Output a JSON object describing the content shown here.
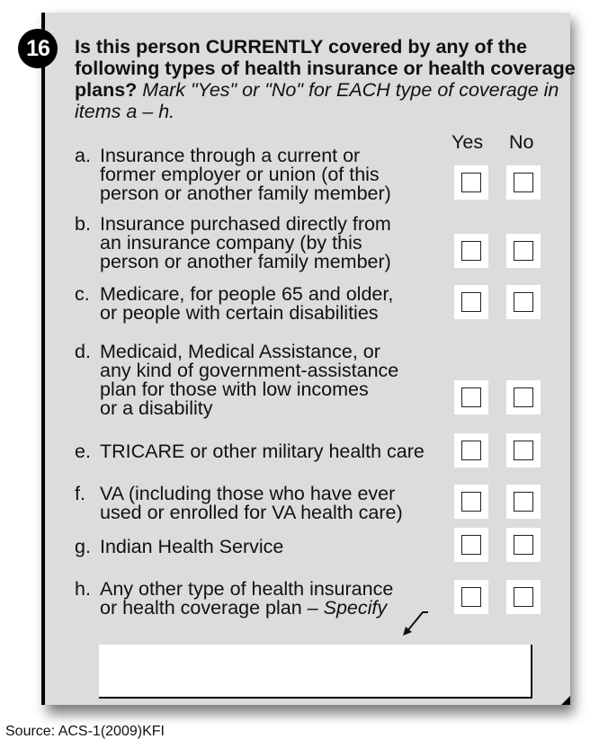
{
  "question": {
    "number": "16",
    "text_bold": "Is this person CURRENTLY covered by any of the following types of health insurance or health coverage plans?",
    "text_italic": "Mark \"Yes\" or \"No\" for EACH type of coverage in items a – h."
  },
  "columns": {
    "yes": "Yes",
    "no": "No"
  },
  "items": [
    {
      "letter": "a.",
      "text": "Insurance through a current or\nformer employer or union (of this\nperson or another family member)"
    },
    {
      "letter": "b.",
      "text": "Insurance purchased directly from\nan insurance company (by this\nperson or another family member)"
    },
    {
      "letter": "c.",
      "text": "Medicare, for people 65 and older,\nor people with certain disabilities"
    },
    {
      "letter": "d.",
      "text": "Medicaid, Medical Assistance, or\nany kind of government-assistance\nplan for those with low incomes\nor a disability"
    },
    {
      "letter": "e.",
      "text": "TRICARE or other military health care"
    },
    {
      "letter": "f.",
      "text": "VA (including those who have ever\nused or enrolled for VA health care)"
    },
    {
      "letter": "g.",
      "text": "Indian Health Service"
    },
    {
      "letter": "h.",
      "text": "Any other type of health insurance\nor health coverage plan – ",
      "specify": "Specify"
    }
  ],
  "specify_value": "",
  "source": "Source:  ACS-1(2009)KFI"
}
